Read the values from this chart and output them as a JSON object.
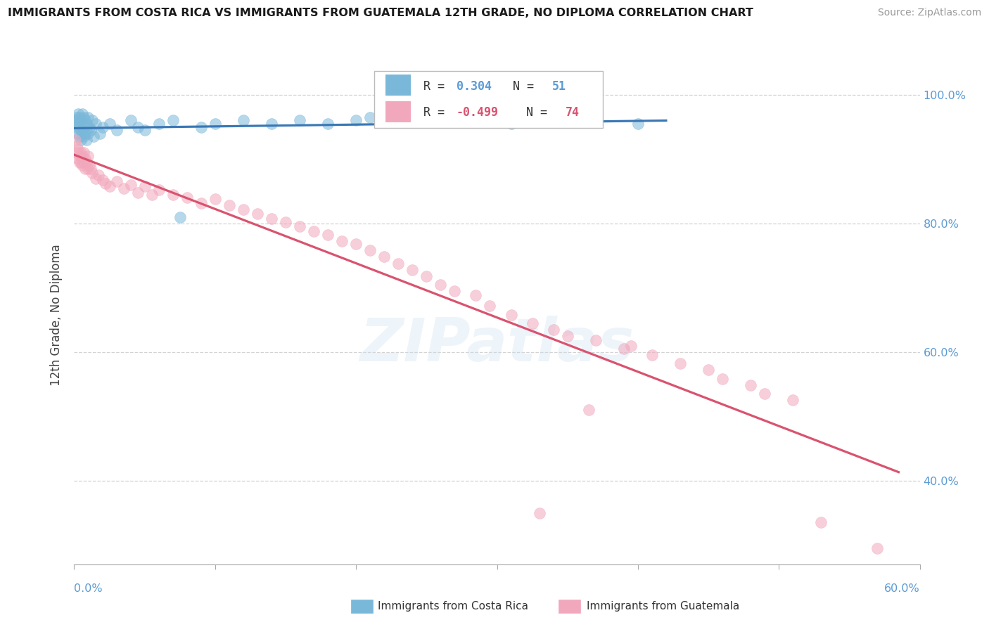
{
  "title": "IMMIGRANTS FROM COSTA RICA VS IMMIGRANTS FROM GUATEMALA 12TH GRADE, NO DIPLOMA CORRELATION CHART",
  "source": "Source: ZipAtlas.com",
  "ylabel": "12th Grade, No Diploma",
  "legend_label_blue": "Immigrants from Costa Rica",
  "legend_label_pink": "Immigrants from Guatemala",
  "R_blue": "0.304",
  "N_blue": "51",
  "R_pink": "-0.499",
  "N_pink": "74",
  "watermark_text": "ZIPatlas",
  "blue_color": "#7ab8d9",
  "pink_color": "#f2a8bc",
  "blue_line_color": "#3a78b5",
  "pink_line_color": "#d9536f",
  "blue_label_color": "#5b9bd5",
  "pink_label_color": "#d9536f",
  "tick_color": "#5b9bd5",
  "xmin": 0.0,
  "xmax": 0.6,
  "ymin": 0.27,
  "ymax": 1.045,
  "yticks": [
    0.4,
    0.6,
    0.8,
    1.0
  ],
  "blue_x": [
    0.001,
    0.002,
    0.002,
    0.003,
    0.003,
    0.003,
    0.004,
    0.004,
    0.004,
    0.005,
    0.005,
    0.005,
    0.006,
    0.006,
    0.007,
    0.007,
    0.007,
    0.008,
    0.008,
    0.009,
    0.009,
    0.01,
    0.01,
    0.011,
    0.012,
    0.013,
    0.014,
    0.015,
    0.018,
    0.02,
    0.025,
    0.03,
    0.04,
    0.045,
    0.05,
    0.06,
    0.07,
    0.075,
    0.09,
    0.1,
    0.12,
    0.14,
    0.16,
    0.18,
    0.2,
    0.21,
    0.24,
    0.26,
    0.31,
    0.35,
    0.4
  ],
  "blue_y": [
    0.96,
    0.965,
    0.95,
    0.97,
    0.955,
    0.94,
    0.965,
    0.95,
    0.935,
    0.96,
    0.945,
    0.93,
    0.97,
    0.94,
    0.965,
    0.95,
    0.935,
    0.96,
    0.94,
    0.955,
    0.93,
    0.965,
    0.94,
    0.95,
    0.945,
    0.96,
    0.935,
    0.955,
    0.94,
    0.95,
    0.955,
    0.945,
    0.96,
    0.95,
    0.945,
    0.955,
    0.96,
    0.81,
    0.95,
    0.955,
    0.96,
    0.955,
    0.96,
    0.955,
    0.96,
    0.965,
    0.96,
    0.965,
    0.955,
    0.96,
    0.955
  ],
  "pink_x": [
    0.001,
    0.002,
    0.002,
    0.003,
    0.003,
    0.004,
    0.004,
    0.005,
    0.005,
    0.006,
    0.006,
    0.007,
    0.007,
    0.008,
    0.008,
    0.009,
    0.01,
    0.01,
    0.011,
    0.012,
    0.013,
    0.015,
    0.017,
    0.02,
    0.022,
    0.025,
    0.03,
    0.035,
    0.04,
    0.045,
    0.05,
    0.055,
    0.06,
    0.07,
    0.08,
    0.09,
    0.1,
    0.11,
    0.12,
    0.13,
    0.14,
    0.15,
    0.16,
    0.17,
    0.18,
    0.19,
    0.2,
    0.21,
    0.22,
    0.23,
    0.24,
    0.25,
    0.26,
    0.27,
    0.285,
    0.295,
    0.31,
    0.325,
    0.34,
    0.35,
    0.37,
    0.39,
    0.41,
    0.43,
    0.45,
    0.46,
    0.48,
    0.49,
    0.51,
    0.33,
    0.365,
    0.395,
    0.53,
    0.57
  ],
  "pink_y": [
    0.93,
    0.92,
    0.91,
    0.915,
    0.9,
    0.905,
    0.895,
    0.91,
    0.895,
    0.905,
    0.89,
    0.91,
    0.895,
    0.9,
    0.885,
    0.895,
    0.905,
    0.885,
    0.89,
    0.885,
    0.878,
    0.87,
    0.875,
    0.868,
    0.862,
    0.858,
    0.865,
    0.855,
    0.86,
    0.848,
    0.858,
    0.845,
    0.852,
    0.845,
    0.84,
    0.832,
    0.838,
    0.828,
    0.822,
    0.815,
    0.808,
    0.802,
    0.795,
    0.788,
    0.782,
    0.772,
    0.768,
    0.758,
    0.748,
    0.738,
    0.728,
    0.718,
    0.705,
    0.695,
    0.688,
    0.672,
    0.658,
    0.645,
    0.635,
    0.625,
    0.618,
    0.605,
    0.595,
    0.582,
    0.572,
    0.558,
    0.548,
    0.535,
    0.525,
    0.35,
    0.51,
    0.61,
    0.335,
    0.295
  ]
}
